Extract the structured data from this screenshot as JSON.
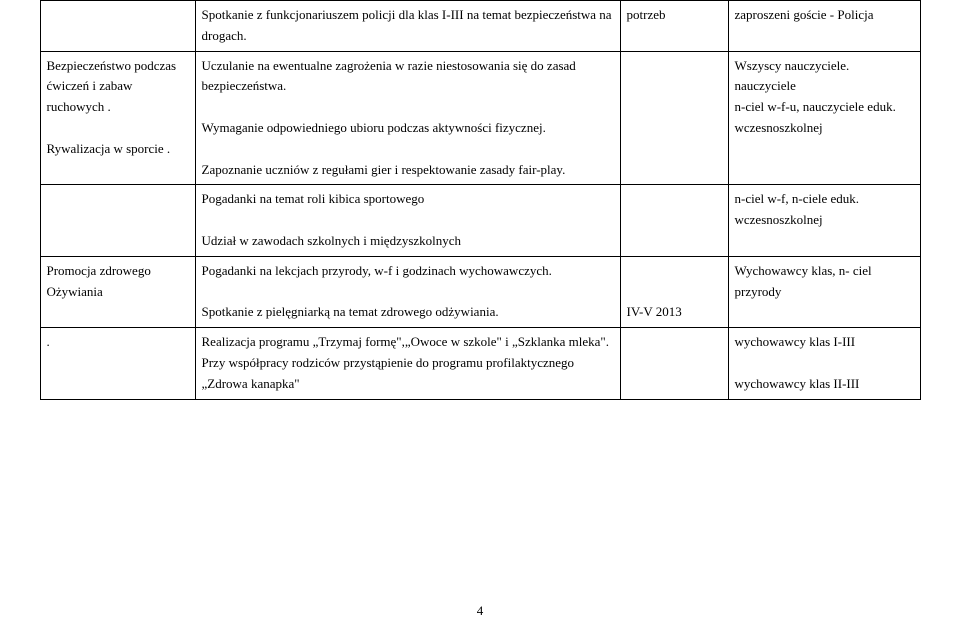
{
  "rows": [
    {
      "col1": "",
      "col2": "Spotkanie z funkcjonariuszem policji dla klas I-III na temat bezpieczeństwa na drogach.",
      "col3": "potrzeb",
      "col4": "zaproszeni goście - Policja"
    },
    {
      "col1": "Bezpieczeństwo podczas ćwiczeń i zabaw ruchowych .\n\nRywalizacja w sporcie .",
      "col2": "Uczulanie na ewentualne zagrożenia w razie niestosowania się do zasad bezpieczeństwa.\n\nWymaganie odpowiedniego ubioru podczas aktywności fizycznej.\n\n Zapoznanie uczniów z regułami gier i respektowanie zasady fair-play.",
      "col3": "",
      "col4": "Wszyscy nauczyciele.\nnauczyciele\nn-ciel w-f-u, nauczyciele eduk. wczesnoszkolnej"
    },
    {
      "col1": "",
      "col2": "Pogadanki na temat roli kibica sportowego\n\nUdział w zawodach szkolnych i międzyszkolnych",
      "col3": "",
      "col4": "n-ciel w-f, n-ciele eduk. wczesnoszkolnej"
    },
    {
      "col1": "Promocja zdrowego Ożywiania",
      "col2": " Pogadanki na lekcjach przyrody, w-f i godzinach wychowawczych.\n\nSpotkanie z pielęgniarką  na temat zdrowego odżywiania.",
      "col3": "\n\nIV-V 2013",
      "col4": "Wychowawcy klas, n- ciel przyrody"
    },
    {
      "col1": ".",
      "col2": " Realizacja programu „Trzymaj formę\",„Owoce w szkole\" i „Szklanka mleka\".\n Przy współpracy rodziców przystąpienie do programu profilaktycznego „Zdrowa kanapka\"",
      "col3": "",
      "col4": "wychowawcy klas I-III\n\nwychowawcy klas II-III"
    }
  ],
  "pageNumber": "4",
  "columns": [
    "c1",
    "c2",
    "c3",
    "c4"
  ]
}
